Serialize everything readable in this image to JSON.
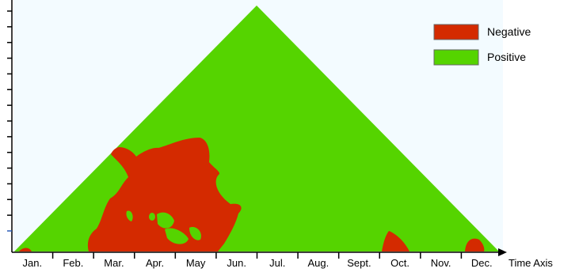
{
  "chart_data": {
    "type": "area",
    "title": "",
    "xlabel": "Time Axis",
    "ylabel": "",
    "categories": [
      "Jan.",
      "Feb.",
      "Mar.",
      "Apr.",
      "May",
      "Jun.",
      "Jul.",
      "Aug.",
      "Sept.",
      "Oct.",
      "Nov.",
      "Dec."
    ],
    "legend": {
      "position": "top-right",
      "entries": [
        {
          "name": "Negative",
          "color": "#d42a00"
        },
        {
          "name": "Positive",
          "color": "#55d400"
        }
      ]
    },
    "series": [
      {
        "name": "Positive",
        "color": "#55d400"
      },
      {
        "name": "Negative",
        "color": "#d42a00"
      }
    ],
    "y_ticks_unlabeled": 15,
    "grid": false,
    "plot_background": "#f3fbff"
  }
}
